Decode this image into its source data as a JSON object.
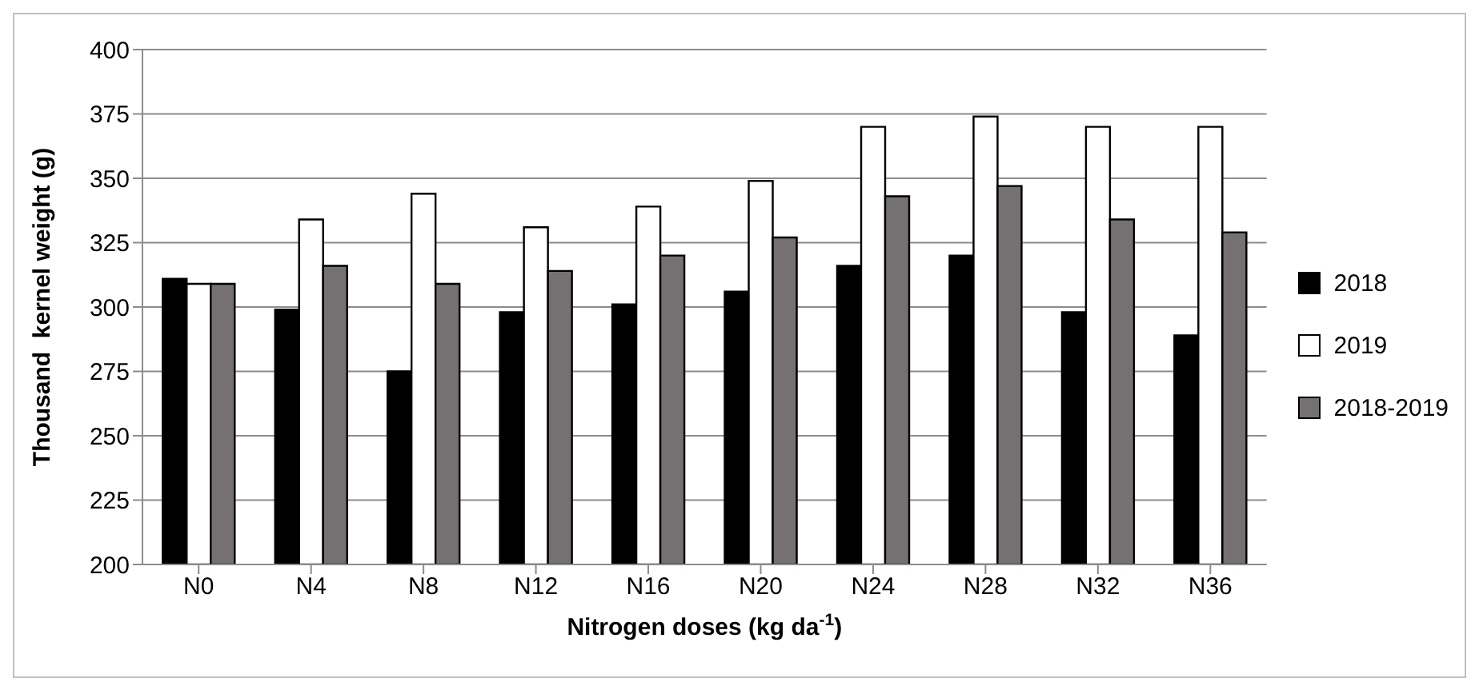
{
  "chart_data": {
    "type": "bar",
    "xlabel": "Nitrogen doses (kg da$^{-1}$)",
    "ylabel": "Thousand  kernel weight (g)",
    "categories": [
      "N0",
      "N4",
      "N8",
      "N12",
      "N16",
      "N20",
      "N24",
      "N28",
      "N32",
      "N36"
    ],
    "series": [
      {
        "name": "2018",
        "color": "#000000",
        "values": [
          311,
          299,
          275,
          298,
          301,
          306,
          316,
          320,
          298,
          289
        ]
      },
      {
        "name": "2019",
        "color": "#ffffff",
        "values": [
          309,
          334,
          344,
          331,
          339,
          349,
          370,
          374,
          370,
          370
        ]
      },
      {
        "name": "2018-2019",
        "color": "#767171",
        "values": [
          309,
          316,
          309,
          314,
          320,
          327,
          343,
          347,
          334,
          329
        ]
      }
    ],
    "ylim": [
      200,
      400
    ],
    "yticks": [
      200,
      225,
      250,
      275,
      300,
      325,
      350,
      375,
      400
    ],
    "grid": "y",
    "legend": "right"
  }
}
